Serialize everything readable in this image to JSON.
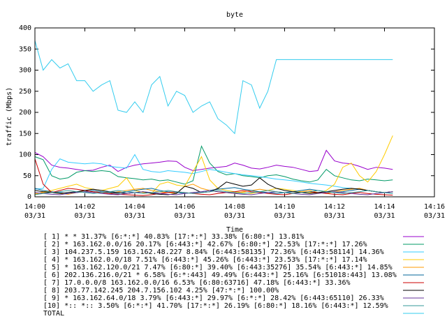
{
  "chart_data": {
    "type": "line",
    "title": "byte",
    "xlabel": "Time",
    "ylabel": "traffic (Mbps)",
    "ylim": [
      0,
      400
    ],
    "y_ticks": [
      "0",
      "50",
      "100",
      "150",
      "200",
      "250",
      "300",
      "350",
      "400"
    ],
    "x_ticks": [
      {
        "time": "14:00",
        "date": "03/31"
      },
      {
        "time": "14:02",
        "date": "03/31"
      },
      {
        "time": "14:04",
        "date": "03/31"
      },
      {
        "time": "14:06",
        "date": "03/31"
      },
      {
        "time": "14:08",
        "date": "03/31"
      },
      {
        "time": "14:10",
        "date": "03/31"
      },
      {
        "time": "14:12",
        "date": "03/31"
      },
      {
        "time": "14:14",
        "date": "03/31"
      },
      {
        "time": "14:16",
        "date": "03/31"
      }
    ],
    "x_minutes": [
      0.0,
      0.33,
      0.67,
      1.0,
      1.33,
      1.67,
      2.0,
      2.33,
      2.67,
      3.0,
      3.33,
      3.67,
      4.0,
      4.33,
      4.67,
      5.0,
      5.33,
      5.67,
      6.0,
      6.33,
      6.67,
      7.0,
      7.33,
      7.67,
      8.0,
      8.33,
      8.67,
      9.0,
      9.33,
      9.67,
      10.0,
      10.33,
      10.67,
      11.0,
      11.33,
      11.67,
      12.0,
      12.33,
      12.67,
      13.0,
      13.33,
      13.67,
      14.0,
      14.33
    ],
    "legend_position": "bottom",
    "series": [
      {
        "name": "[ 1] * * 31.37%  [6:*:*] 40.83% [17:*:*] 33.38% [6:80:*] 13.81%",
        "color": "#9900cc",
        "values": [
          105,
          95,
          75,
          70,
          68,
          65,
          62,
          63,
          70,
          75,
          60,
          70,
          75,
          78,
          80,
          82,
          85,
          84,
          70,
          62,
          65,
          68,
          70,
          72,
          80,
          75,
          68,
          66,
          70,
          75,
          72,
          70,
          65,
          60,
          62,
          110,
          85,
          80,
          78,
          72,
          65,
          70,
          68,
          65
        ]
      },
      {
        "name": "[ 2] * 163.162.0.0/16 20.17%  [6:443:*] 42.67% [6:80:*] 22.53% [17:*:*] 17.26%",
        "color": "#009966",
        "values": [
          95,
          88,
          50,
          42,
          45,
          58,
          62,
          60,
          62,
          60,
          48,
          45,
          43,
          40,
          42,
          38,
          40,
          35,
          30,
          38,
          120,
          80,
          60,
          52,
          55,
          50,
          48,
          45,
          50,
          52,
          48,
          42,
          38,
          35,
          40,
          65,
          50,
          45,
          40,
          38,
          42,
          40,
          38,
          40
        ]
      },
      {
        "name": "[ 3] 104.237.5.159 163.162.48.227 8.84%  [6:443:58135] 72.36% [6:443:58114] 14.36%",
        "color": "#33ccff",
        "values": [
          18,
          20,
          65,
          90,
          82,
          80,
          78,
          80,
          78,
          72,
          70,
          68,
          100,
          65,
          60,
          58,
          62,
          60,
          58,
          55,
          60,
          65,
          62,
          58,
          55,
          52,
          50,
          48,
          45,
          42,
          40,
          38,
          35,
          32,
          30,
          28,
          25,
          22,
          20,
          18,
          15,
          12,
          10,
          8
        ]
      },
      {
        "name": "[ 4] * 163.162.0.0/18 7.51%  [6:443:*] 45.26% [6:443:*] 23.53% [17:*:*] 17.14%",
        "color": "#ffcc00",
        "values": [
          5,
          12,
          15,
          20,
          25,
          30,
          22,
          18,
          15,
          20,
          25,
          45,
          15,
          10,
          8,
          30,
          35,
          28,
          25,
          60,
          95,
          40,
          20,
          15,
          12,
          10,
          8,
          12,
          15,
          20,
          18,
          15,
          12,
          10,
          8,
          15,
          30,
          70,
          80,
          50,
          35,
          60,
          100,
          145
        ]
      },
      {
        "name": "[ 5] * 163.162.120.0/21 7.47%  [6:80:*] 39.40% [6:443:35276] 35.54% [6:443:*] 14.85%",
        "color": "#ff9900",
        "values": [
          8,
          10,
          12,
          8,
          6,
          10,
          15,
          12,
          10,
          8,
          12,
          15,
          18,
          20,
          15,
          12,
          10,
          8,
          25,
          30,
          20,
          15,
          12,
          10,
          8,
          12,
          15,
          18,
          15,
          12,
          10,
          8,
          12,
          15,
          10,
          8,
          12,
          15,
          18,
          20,
          15,
          12,
          10,
          12
        ]
      },
      {
        "name": "[ 6] 202.136.216.0/21 * 6.58%  [6:*:443] 49.49% [6:443:*] 25.16% [6:51018:443] 13.08%",
        "color": "#006699",
        "values": [
          20,
          15,
          12,
          10,
          8,
          10,
          12,
          15,
          12,
          10,
          8,
          12,
          15,
          18,
          20,
          15,
          12,
          10,
          8,
          10,
          12,
          15,
          18,
          20,
          22,
          18,
          15,
          12,
          10,
          8,
          10,
          12,
          15,
          18,
          15,
          12,
          10,
          12,
          15,
          18,
          15,
          12,
          10,
          12
        ]
      },
      {
        "name": "[ 7] 17.0.0.0/8 163.162.0.0/16 6.53%  [6:80:63716] 47.18% [6:443:*] 33.36%",
        "color": "#cc0000",
        "values": [
          90,
          30,
          10,
          15,
          20,
          18,
          15,
          12,
          10,
          8,
          6,
          5,
          4,
          3,
          5,
          8,
          10,
          12,
          10,
          8,
          6,
          5,
          8,
          10,
          12,
          15,
          12,
          10,
          8,
          6,
          5,
          8,
          10,
          12,
          10,
          8,
          6,
          5,
          8,
          10,
          8,
          6,
          5,
          4
        ]
      },
      {
        "name": "[ 8] 203.77.142.245 204.7.156.102 4.25%  [47:*:*] 100.00%",
        "color": "#000000",
        "values": [
          15,
          12,
          10,
          8,
          10,
          12,
          15,
          18,
          15,
          12,
          10,
          8,
          10,
          12,
          8,
          6,
          5,
          8,
          25,
          20,
          10,
          12,
          20,
          35,
          30,
          25,
          28,
          45,
          30,
          20,
          15,
          12,
          10,
          8,
          10,
          12,
          15,
          18,
          20,
          18,
          15,
          12,
          10,
          12
        ]
      },
      {
        "name": "[ 9] * 163.162.64.0/18 3.79%  [6:443:*] 29.97% [6:*:*] 28.42% [6:443:65110] 26.33%",
        "color": "#663399",
        "values": [
          10,
          8,
          6,
          5,
          8,
          10,
          12,
          10,
          8,
          6,
          5,
          8,
          10,
          12,
          10,
          8,
          6,
          5,
          8,
          10,
          12,
          15,
          12,
          10,
          8,
          6,
          5,
          8,
          10,
          12,
          10,
          8,
          6,
          5,
          8,
          10,
          12,
          10,
          8,
          6,
          5,
          8,
          10,
          12
        ]
      },
      {
        "name": "[10] *:: *:: 3.50%  [6:*:*] 41.70% [17:*:*] 26.19% [6:80:*] 18.16% [6:443:*] 12.59%",
        "color": "#339999",
        "values": [
          5,
          8,
          10,
          12,
          15,
          12,
          10,
          8,
          10,
          12,
          15,
          12,
          10,
          8,
          10,
          12,
          15,
          12,
          10,
          8,
          10,
          12,
          15,
          12,
          10,
          8,
          10,
          12,
          15,
          12,
          10,
          8,
          10,
          12,
          15,
          12,
          10,
          8,
          10,
          12,
          15,
          12,
          10,
          8
        ]
      },
      {
        "name": "TOTAL",
        "color": "#33ccee",
        "values": [
          370,
          300,
          325,
          305,
          315,
          275,
          275,
          250,
          265,
          275,
          205,
          200,
          225,
          200,
          265,
          285,
          215,
          250,
          240,
          200,
          215,
          225,
          185,
          170,
          150,
          275,
          265,
          210,
          250,
          325,
          325,
          325,
          325,
          325,
          325,
          325,
          325,
          325,
          325,
          325,
          325,
          325,
          325,
          325
        ]
      }
    ]
  }
}
